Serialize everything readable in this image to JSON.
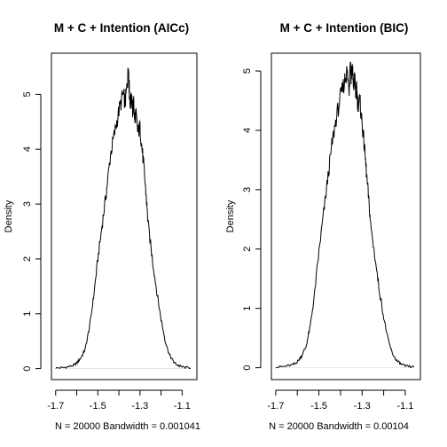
{
  "chart_data": [
    {
      "type": "line",
      "title": "M + C + Intention (AICc)",
      "xlabel": "N = 20000   Bandwidth = 0.001041",
      "ylabel": "Density",
      "xlim": [
        -1.72,
        -1.03
      ],
      "ylim": [
        -0.2,
        5.75
      ],
      "x_ticks": [
        -1.7,
        -1.5,
        -1.3,
        -1.1
      ],
      "x_tick_labels": [
        "-1.7",
        "-1.5",
        "-1.3",
        "-1.1"
      ],
      "x_minor_ticks": [
        -1.6,
        -1.4,
        -1.2
      ],
      "y_ticks": [
        0,
        1,
        2,
        3,
        4,
        5
      ],
      "y_tick_labels": [
        "0",
        "1",
        "2",
        "3",
        "4",
        "5"
      ],
      "grid": false,
      "legend": "none",
      "color": "#000000",
      "series": [
        {
          "x": [
            -1.7,
            -1.66,
            -1.62,
            -1.6,
            -1.58,
            -1.56,
            -1.54,
            -1.52,
            -1.5,
            -1.48,
            -1.46,
            -1.44,
            -1.42,
            -1.4,
            -1.38,
            -1.37,
            -1.36,
            -1.355,
            -1.35,
            -1.345,
            -1.34,
            -1.335,
            -1.33,
            -1.325,
            -1.32,
            -1.31,
            -1.3,
            -1.29,
            -1.28,
            -1.27,
            -1.26,
            -1.24,
            -1.22,
            -1.2,
            -1.18,
            -1.16,
            -1.14,
            -1.12,
            -1.1,
            -1.06
          ],
          "y": [
            0.01,
            0.02,
            0.05,
            0.1,
            0.2,
            0.35,
            0.75,
            1.3,
            2.0,
            2.6,
            3.2,
            3.9,
            4.3,
            4.7,
            5.0,
            4.85,
            5.2,
            5.5,
            5.05,
            4.8,
            5.0,
            4.7,
            4.85,
            4.55,
            4.65,
            4.3,
            4.4,
            4.0,
            3.6,
            3.1,
            2.6,
            1.95,
            1.4,
            0.9,
            0.5,
            0.25,
            0.12,
            0.06,
            0.03,
            0.01
          ]
        }
      ]
    },
    {
      "type": "line",
      "title": "M + C + Intention (BIC)",
      "xlabel": "N = 20000   Bandwidth = 0.00104",
      "ylabel": "Density",
      "xlim": [
        -1.72,
        -1.03
      ],
      "ylim": [
        -0.2,
        5.3
      ],
      "x_ticks": [
        -1.7,
        -1.5,
        -1.3,
        -1.1
      ],
      "x_tick_labels": [
        "-1.7",
        "-1.5",
        "-1.3",
        "-1.1"
      ],
      "x_minor_ticks": [
        -1.6,
        -1.4,
        -1.2
      ],
      "y_ticks": [
        0,
        1,
        2,
        3,
        4,
        5
      ],
      "y_tick_labels": [
        "0",
        "1",
        "2",
        "3",
        "4",
        "5"
      ],
      "grid": false,
      "legend": "none",
      "color": "#000000",
      "series": [
        {
          "x": [
            -1.7,
            -1.66,
            -1.62,
            -1.6,
            -1.58,
            -1.56,
            -1.54,
            -1.52,
            -1.5,
            -1.48,
            -1.46,
            -1.44,
            -1.42,
            -1.4,
            -1.38,
            -1.37,
            -1.36,
            -1.355,
            -1.35,
            -1.345,
            -1.34,
            -1.335,
            -1.33,
            -1.325,
            -1.32,
            -1.31,
            -1.3,
            -1.29,
            -1.28,
            -1.27,
            -1.26,
            -1.24,
            -1.22,
            -1.2,
            -1.18,
            -1.16,
            -1.14,
            -1.12,
            -1.1,
            -1.06
          ],
          "y": [
            0.01,
            0.02,
            0.05,
            0.1,
            0.2,
            0.35,
            0.7,
            1.25,
            1.95,
            2.55,
            3.15,
            3.75,
            4.2,
            4.55,
            4.85,
            5.0,
            4.7,
            5.15,
            4.9,
            5.1,
            4.65,
            4.95,
            4.6,
            4.7,
            4.45,
            4.5,
            4.1,
            3.75,
            3.3,
            2.85,
            2.4,
            1.85,
            1.3,
            0.85,
            0.48,
            0.24,
            0.12,
            0.06,
            0.03,
            0.01
          ]
        }
      ]
    }
  ]
}
